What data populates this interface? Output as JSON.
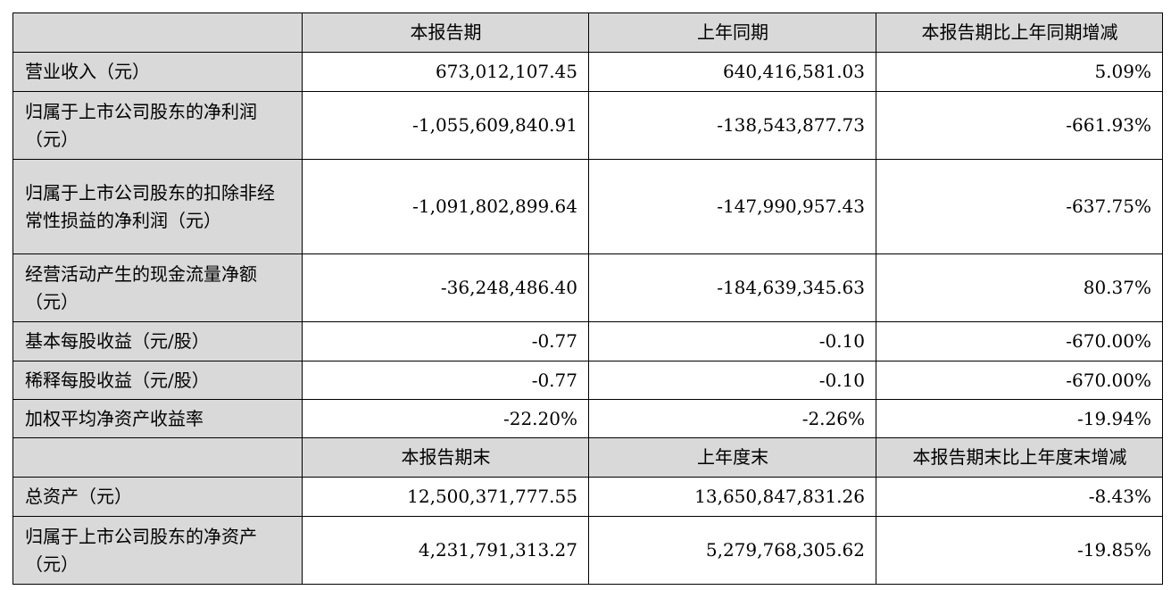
{
  "header_period": {
    "col1": "本报告期",
    "col2": "上年同期",
    "col3": "本报告期比上年同期增减"
  },
  "rows_period": [
    {
      "label": "营业收入（元）",
      "current": "673,012,107.45",
      "prior": "640,416,581.03",
      "change": "5.09%"
    },
    {
      "label": "归属于上市公司股东的净利润（元）",
      "current": "-1,055,609,840.91",
      "prior": "-138,543,877.73",
      "change": "-661.93%"
    },
    {
      "label": "归属于上市公司股东的扣除非经常性损益的净利润（元）",
      "current": "-1,091,802,899.64",
      "prior": "-147,990,957.43",
      "change": "-637.75%"
    },
    {
      "label": "经营活动产生的现金流量净额（元）",
      "current": "-36,248,486.40",
      "prior": "-184,639,345.63",
      "change": "80.37%"
    },
    {
      "label": "基本每股收益（元/股）",
      "current": "-0.77",
      "prior": "-0.10",
      "change": "-670.00%"
    },
    {
      "label": "稀释每股收益（元/股）",
      "current": "-0.77",
      "prior": "-0.10",
      "change": "-670.00%"
    },
    {
      "label": "加权平均净资产收益率",
      "current": "-22.20%",
      "prior": "-2.26%",
      "change": "-19.94%"
    }
  ],
  "header_end": {
    "col1": "本报告期末",
    "col2": "上年度末",
    "col3": "本报告期末比上年度末增减"
  },
  "rows_end": [
    {
      "label": "总资产（元）",
      "current": "12,500,371,777.55",
      "prior": "13,650,847,831.26",
      "change": "-8.43%"
    },
    {
      "label": "归属于上市公司股东的净资产（元）",
      "current": "4,231,791,313.27",
      "prior": "5,279,768,305.62",
      "change": "-19.85%"
    }
  ],
  "colors": {
    "header_background": "#d9d9d9",
    "border": "#000000"
  }
}
